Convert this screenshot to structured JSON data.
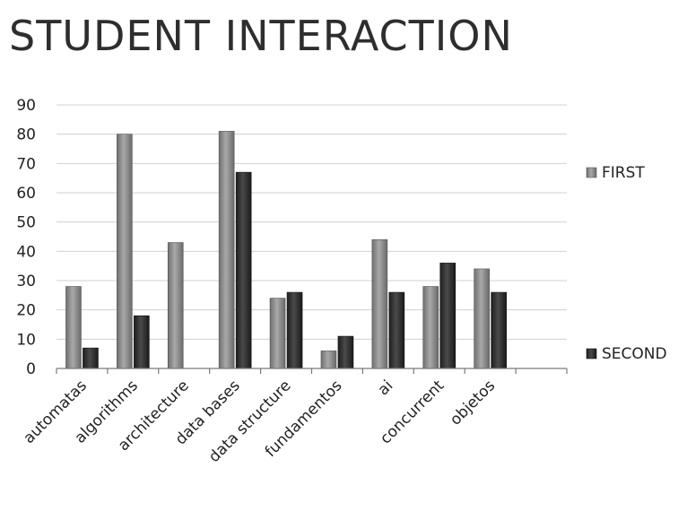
{
  "chart_data": {
    "type": "bar",
    "title": "STUDENT INTERACTION",
    "categories": [
      "automatas",
      "algorithms",
      "architecture",
      "data bases",
      "data structure",
      "fundamentos",
      "ai",
      "concurrent",
      "objetos",
      ""
    ],
    "series": [
      {
        "name": "FIRST",
        "values": [
          28,
          80,
          43,
          81,
          24,
          6,
          44,
          28,
          34,
          null
        ]
      },
      {
        "name": "SECOND",
        "values": [
          7,
          18,
          0,
          67,
          26,
          11,
          26,
          36,
          26,
          null
        ]
      }
    ],
    "yticks": [
      0,
      10,
      20,
      30,
      40,
      50,
      60,
      70,
      80,
      90
    ],
    "ylim": [
      0,
      90
    ],
    "grid": true,
    "legend": "right",
    "colors": {
      "FIRST": "#8c8c8c",
      "SECOND": "#2b2b2b"
    }
  }
}
